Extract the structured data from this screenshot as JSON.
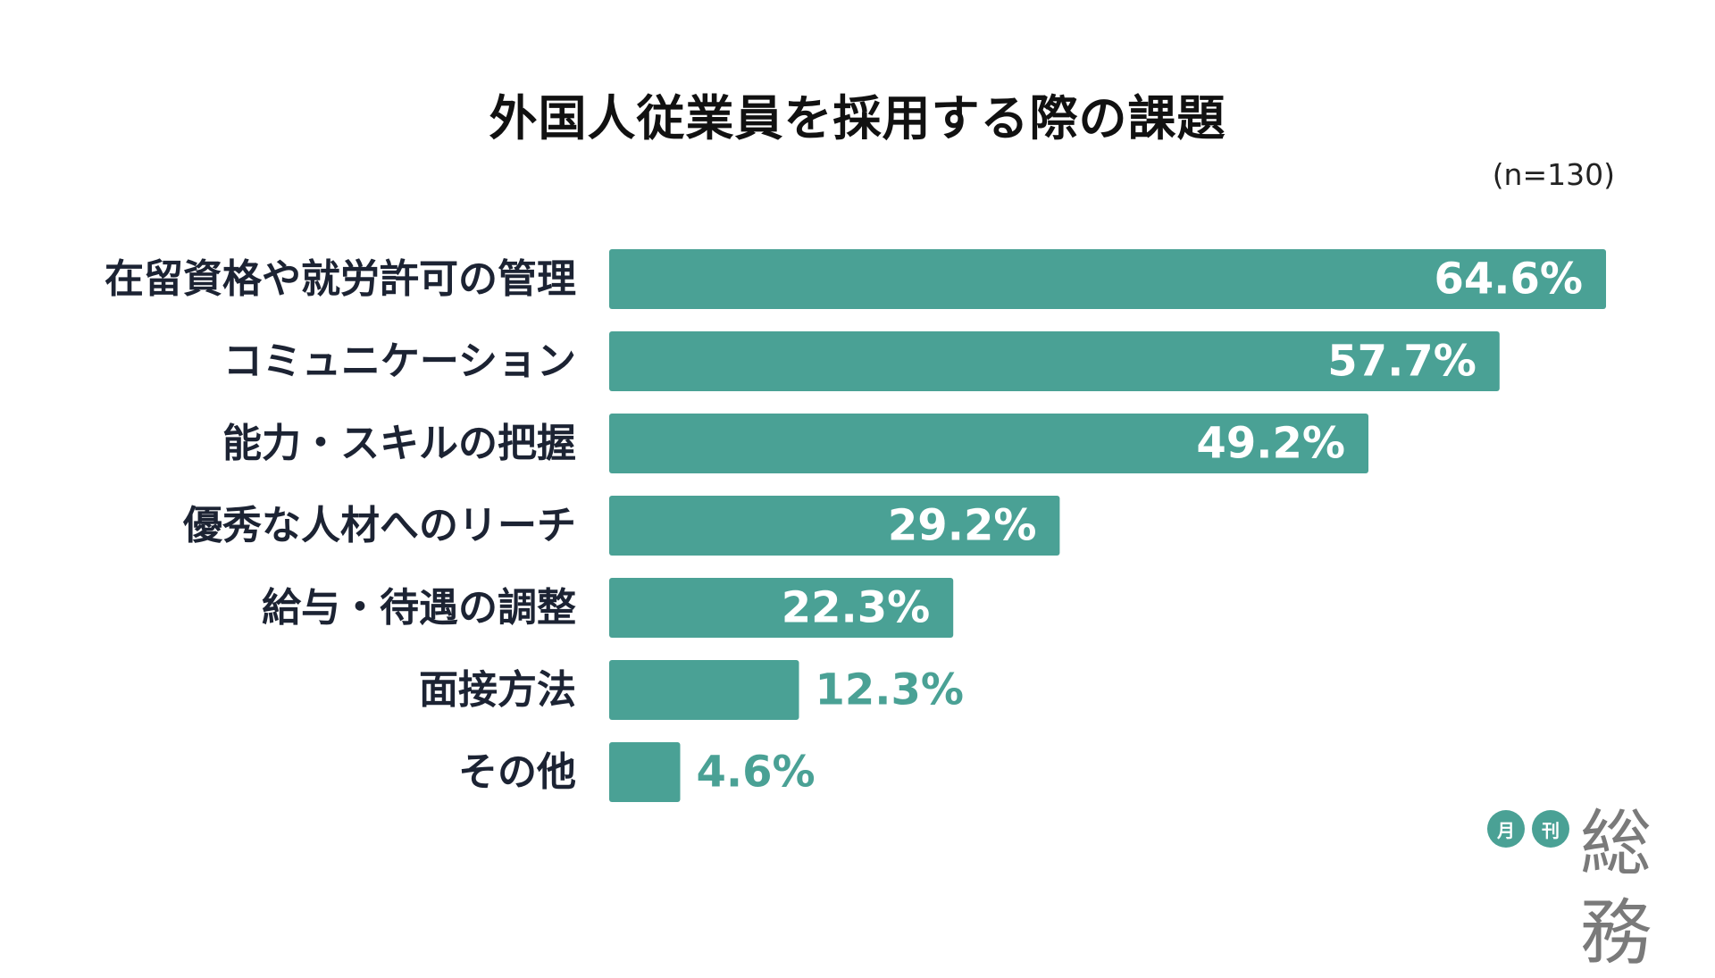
{
  "title": "外国人従業員を採用する際の課題",
  "sample_note": "(n=130)",
  "colors": {
    "bar": "#4aa195",
    "label": "#1c2333",
    "value_inside": "#ffffff",
    "value_outside": "#4aa195"
  },
  "logo": {
    "badge1": "月",
    "badge2": "刊",
    "text": "総務"
  },
  "chart_data": {
    "type": "bar",
    "orientation": "horizontal",
    "title": "外国人従業員を採用する際の課題",
    "note": "(n=130)",
    "unit": "%",
    "categories": [
      "在留資格や就労許可の管理",
      "コミュニケーション",
      "能力・スキルの把握",
      "優秀な人材へのリーチ",
      "給与・待遇の調整",
      "面接方法",
      "その他"
    ],
    "values": [
      64.6,
      57.7,
      49.2,
      29.2,
      22.3,
      12.3,
      4.6
    ],
    "value_labels": [
      "64.6%",
      "57.7%",
      "49.2%",
      "29.2%",
      "22.3%",
      "12.3%",
      "4.6%"
    ],
    "xlim": [
      0,
      64.6
    ],
    "grid": false,
    "legend": "none"
  }
}
